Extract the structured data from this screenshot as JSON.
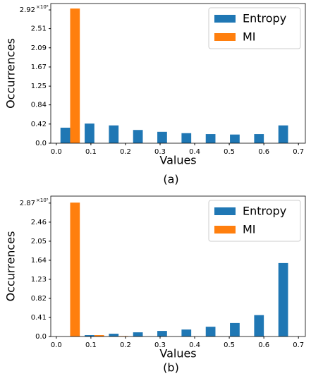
{
  "chart_data": [
    {
      "type": "histogram",
      "caption": "(a)",
      "xlabel": "Values",
      "ylabel": "Occurrences",
      "y_offset_label": "×10⁶",
      "bins": [
        0.005,
        0.075,
        0.145,
        0.215,
        0.285,
        0.355,
        0.425,
        0.495,
        0.565,
        0.635,
        0.705
      ],
      "series": [
        {
          "name": "Entropy",
          "color": "#1f77b4",
          "values": [
            0.34,
            0.43,
            0.39,
            0.29,
            0.25,
            0.22,
            0.2,
            0.19,
            0.2,
            0.39
          ]
        },
        {
          "name": "MI",
          "color": "#ff7f0e",
          "values": [
            2.95,
            0,
            0,
            0,
            0,
            0,
            0,
            0,
            0,
            0
          ]
        }
      ],
      "xlim": [
        -0.016,
        0.72
      ],
      "xticks": [
        {
          "value": 0,
          "label": "0.0"
        },
        0.1,
        0.2,
        0.3,
        0.4,
        0.5,
        0.6,
        0.7
      ],
      "ylim": [
        0,
        3.06
      ],
      "yticks": [
        {
          "value": 0,
          "label": "0.0"
        },
        0.42,
        0.84,
        1.25,
        1.67,
        2.09,
        2.51,
        2.92
      ],
      "legend": "upper right"
    },
    {
      "type": "histogram",
      "caption": "(b)",
      "xlabel": "Values",
      "ylabel": "Occurrences",
      "y_offset_label": "×10⁵",
      "bins": [
        0.005,
        0.075,
        0.145,
        0.215,
        0.285,
        0.355,
        0.425,
        0.495,
        0.565,
        0.635,
        0.705
      ],
      "series": [
        {
          "name": "Entropy",
          "color": "#1f77b4",
          "values": [
            0,
            0.03,
            0.06,
            0.09,
            0.12,
            0.15,
            0.21,
            0.29,
            0.46,
            1.58
          ]
        },
        {
          "name": "MI",
          "color": "#ff7f0e",
          "values": [
            2.88,
            0.03,
            0.01,
            0,
            0,
            0,
            0,
            0,
            0,
            0
          ]
        }
      ],
      "xlim": [
        -0.016,
        0.72
      ],
      "xticks": [
        {
          "value": 0,
          "label": "0.0"
        },
        0.1,
        0.2,
        0.3,
        0.4,
        0.5,
        0.6,
        0.7
      ],
      "ylim": [
        0,
        3.02
      ],
      "yticks": [
        {
          "value": 0,
          "label": "0.0"
        },
        0.41,
        0.82,
        1.23,
        1.64,
        2.05,
        2.46,
        2.87
      ],
      "legend": "upper right"
    }
  ]
}
